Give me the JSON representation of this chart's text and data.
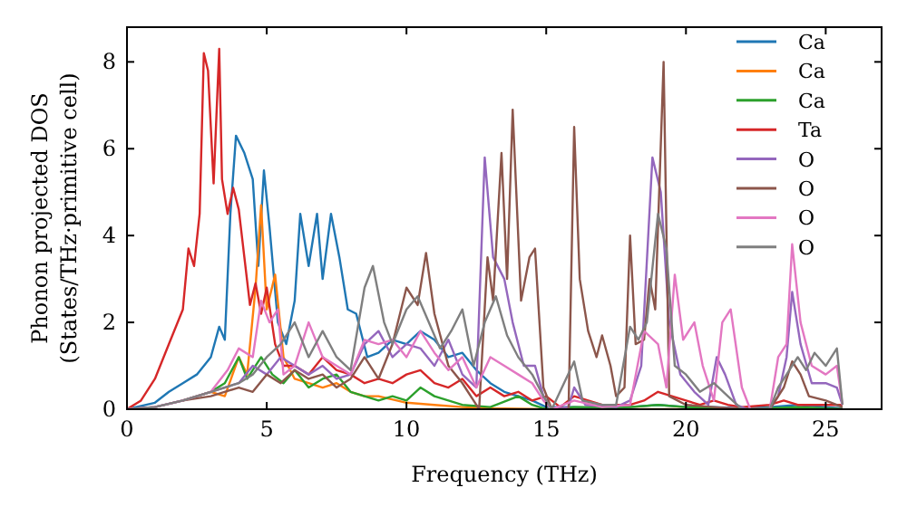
{
  "chart_data": {
    "type": "line",
    "xlabel": "Frequency (THz)",
    "ylabel": "Phonon projected DOS\n(States/THz·primitive cell)",
    "xlim": [
      0,
      27
    ],
    "ylim": [
      0,
      8.8
    ],
    "xticks": [
      0,
      5,
      10,
      15,
      20,
      25
    ],
    "yticks": [
      0,
      2,
      4,
      6,
      8
    ],
    "grid": false,
    "legend": "top right",
    "marker": "none",
    "line_style": "solid",
    "series": [
      {
        "name": "Ca",
        "color": "#1f77b4",
        "x": [
          0,
          1,
          1.5,
          2,
          2.5,
          3,
          3.3,
          3.5,
          3.7,
          3.9,
          4.2,
          4.5,
          4.7,
          4.9,
          5.1,
          5.4,
          5.7,
          6.0,
          6.2,
          6.5,
          6.8,
          7.0,
          7.3,
          7.6,
          7.9,
          8.2,
          8.6,
          9,
          9.5,
          10,
          10.5,
          11,
          11.5,
          12,
          12.5,
          13,
          13.5,
          14,
          14.5,
          15,
          16,
          17,
          18,
          19,
          20,
          21,
          22,
          23,
          24,
          25,
          25.6
        ],
        "values": [
          0,
          0.15,
          0.4,
          0.6,
          0.8,
          1.2,
          1.9,
          1.6,
          4.5,
          6.3,
          5.9,
          5.3,
          3.3,
          5.5,
          4.2,
          2.0,
          1.5,
          2.5,
          4.5,
          3.3,
          4.5,
          3.0,
          4.5,
          3.5,
          2.3,
          2.2,
          1.2,
          1.3,
          1.6,
          1.5,
          1.8,
          1.6,
          1.2,
          1.3,
          0.9,
          0.6,
          0.4,
          0.3,
          0.2,
          0.05,
          0.05,
          0.02,
          0.05,
          0.1,
          0.05,
          0.05,
          0.02,
          0.05,
          0.1,
          0.05,
          0.02
        ]
      },
      {
        "name": "Ca",
        "color": "#ff7f0e",
        "x": [
          2,
          3,
          3.5,
          4,
          4.3,
          4.6,
          4.8,
          5.0,
          5.3,
          5.6,
          6,
          6.5,
          7,
          7.5,
          8,
          8.5,
          9,
          10,
          11,
          12,
          13,
          15,
          20,
          25.6
        ],
        "values": [
          0.2,
          0.4,
          0.3,
          1.2,
          0.8,
          2.8,
          4.7,
          2.3,
          3.1,
          1.2,
          0.7,
          0.6,
          0.5,
          0.6,
          0.4,
          0.3,
          0.3,
          0.15,
          0.1,
          0.05,
          0.02,
          0,
          0,
          0
        ]
      },
      {
        "name": "Ca",
        "color": "#2ca02c",
        "x": [
          2,
          3,
          3.5,
          4,
          4.3,
          4.8,
          5.2,
          5.6,
          6,
          6.5,
          7,
          7.5,
          8,
          8.5,
          9,
          9.5,
          10,
          10.5,
          11,
          11.5,
          12,
          13,
          14,
          14.5,
          15,
          16,
          18,
          19,
          20,
          22,
          24,
          25.6
        ],
        "values": [
          0.2,
          0.4,
          0.6,
          1.2,
          0.7,
          1.2,
          0.8,
          0.6,
          0.9,
          0.5,
          0.7,
          0.8,
          0.4,
          0.3,
          0.2,
          0.3,
          0.2,
          0.5,
          0.3,
          0.2,
          0.1,
          0.05,
          0.3,
          0.1,
          0,
          0.05,
          0.05,
          0.1,
          0.05,
          0,
          0.05,
          0
        ]
      },
      {
        "name": "Ta",
        "color": "#d62728",
        "x": [
          0,
          0.5,
          1,
          1.5,
          2,
          2.2,
          2.4,
          2.6,
          2.75,
          2.9,
          3.1,
          3.3,
          3.4,
          3.6,
          3.8,
          4.0,
          4.2,
          4.4,
          4.6,
          4.8,
          5.0,
          5.3,
          5.6,
          6,
          6.5,
          7,
          7.5,
          8,
          8.5,
          9,
          9.5,
          10,
          10.5,
          11,
          11.5,
          12,
          12.5,
          13,
          13.5,
          14,
          14.5,
          15,
          15.5,
          16,
          17,
          18,
          18.5,
          19,
          19.5,
          20,
          20.5,
          21,
          21.5,
          22,
          23,
          23.5,
          24,
          25,
          25.6
        ],
        "values": [
          0,
          0.2,
          0.7,
          1.5,
          2.3,
          3.7,
          3.3,
          4.5,
          8.2,
          7.8,
          5.2,
          8.3,
          5.3,
          4.5,
          5.1,
          4.6,
          3.5,
          2.4,
          2.9,
          2.2,
          2.8,
          1.5,
          1.0,
          1.0,
          0.8,
          1.2,
          0.9,
          0.8,
          0.6,
          0.7,
          0.6,
          0.8,
          0.9,
          0.6,
          0.5,
          0.7,
          0.3,
          0.5,
          0.3,
          0.4,
          0.2,
          0.3,
          0.05,
          0.3,
          0.1,
          0.1,
          0.2,
          0.4,
          0.3,
          0.2,
          0.1,
          0.2,
          0.1,
          0.05,
          0.1,
          0.2,
          0.1,
          0.1,
          0.1
        ]
      },
      {
        "name": "O",
        "color": "#9467bd",
        "x": [
          0,
          1,
          2,
          3,
          4,
          4.5,
          5,
          5.5,
          6,
          6.5,
          7,
          7.5,
          8,
          8.5,
          9,
          9.5,
          10,
          10.5,
          11,
          11.5,
          12,
          12.5,
          12.8,
          13.1,
          13.5,
          13.8,
          14.2,
          14.6,
          14.9,
          15.2,
          15.8,
          16,
          16.4,
          17.5,
          18,
          18.4,
          18.8,
          19.1,
          19.4,
          19.8,
          20.3,
          20.8,
          21.1,
          21.4,
          21.8,
          22.2,
          23.0,
          23.3,
          23.6,
          23.8,
          24.1,
          24.5,
          25,
          25.4,
          25.6
        ],
        "values": [
          0,
          0.05,
          0.2,
          0.4,
          0.6,
          1.0,
          0.8,
          1.2,
          1.0,
          0.8,
          1.0,
          0.7,
          0.8,
          1.5,
          1.8,
          1.2,
          1.5,
          1.4,
          1.0,
          1.6,
          0.8,
          0.5,
          5.8,
          3.5,
          3.0,
          2.0,
          1.0,
          1.0,
          0.3,
          0,
          0.05,
          0.5,
          0.1,
          0.05,
          0.2,
          1.0,
          5.8,
          5.0,
          2.0,
          0.8,
          0.4,
          0.1,
          1.2,
          0.8,
          0.1,
          0,
          0,
          0.3,
          1.2,
          2.7,
          1.5,
          0.6,
          0.6,
          0.5,
          0.1
        ]
      },
      {
        "name": "O",
        "color": "#8c564b",
        "x": [
          0,
          1,
          2,
          3,
          4,
          4.5,
          5,
          5.5,
          6,
          6.5,
          7,
          7.5,
          8,
          8.5,
          9,
          9.5,
          10,
          10.4,
          10.7,
          11,
          11.5,
          12,
          12.4,
          12.6,
          12.9,
          13.1,
          13.4,
          13.6,
          13.8,
          14.1,
          14.4,
          14.6,
          14.9,
          15.2,
          15.8,
          16.0,
          16.2,
          16.5,
          16.8,
          17.0,
          17.3,
          17.5,
          17.8,
          18.0,
          18.2,
          18.5,
          18.7,
          18.9,
          19.2,
          19.4,
          20,
          21,
          22,
          23,
          23.5,
          23.8,
          24.1,
          24.4,
          25,
          25.6
        ],
        "values": [
          0,
          0.05,
          0.2,
          0.3,
          0.5,
          0.4,
          0.8,
          0.6,
          0.9,
          0.7,
          0.8,
          0.5,
          0.7,
          1.2,
          0.7,
          1.5,
          2.8,
          2.4,
          3.6,
          2.2,
          1.0,
          0.6,
          0.2,
          0,
          3.5,
          2.5,
          5.9,
          3.0,
          6.9,
          2.5,
          3.5,
          3.7,
          0.5,
          0,
          0,
          6.5,
          3.0,
          1.8,
          1.2,
          1.7,
          1.0,
          0.3,
          0.5,
          4.0,
          1.5,
          1.6,
          3.0,
          2.3,
          8.0,
          0.3,
          0.1,
          0.05,
          0,
          0,
          0.5,
          1.1,
          0.8,
          0.3,
          0.2,
          0.05
        ]
      },
      {
        "name": "O",
        "color": "#e377c2",
        "x": [
          0,
          1,
          2,
          3,
          3.6,
          4.0,
          4.5,
          4.8,
          5.1,
          5.4,
          5.6,
          6,
          6.5,
          7,
          7.5,
          8,
          8.5,
          9,
          9.5,
          10,
          10.5,
          11,
          11.5,
          12,
          12.5,
          13,
          13.5,
          14,
          14.5,
          14.9,
          15.2,
          16,
          17,
          18,
          18.5,
          19,
          19.3,
          19.6,
          19.9,
          20.3,
          20.6,
          21.0,
          21.3,
          21.6,
          22.0,
          22.3,
          23.0,
          23.3,
          23.6,
          23.8,
          24.1,
          24.5,
          25,
          25.4,
          25.6
        ],
        "values": [
          0,
          0.05,
          0.2,
          0.4,
          0.9,
          1.4,
          1.2,
          2.5,
          2.0,
          2.3,
          0.8,
          1.0,
          2.0,
          1.2,
          1.0,
          0.8,
          1.6,
          1.5,
          1.6,
          1.2,
          1.8,
          1.3,
          0.9,
          1.2,
          0.5,
          1.2,
          1.0,
          0.8,
          0.6,
          0.2,
          0,
          0.2,
          0.05,
          0.1,
          1.8,
          1.5,
          0.5,
          3.1,
          1.6,
          2.0,
          1.0,
          0.2,
          2.0,
          2.3,
          0.5,
          0,
          0,
          1.2,
          1.5,
          3.8,
          2.0,
          1.0,
          0.8,
          1.0,
          0.1
        ]
      },
      {
        "name": "O",
        "color": "#7f7f7f",
        "x": [
          0,
          1,
          2,
          3,
          4,
          4.5,
          5,
          5.5,
          6,
          6.5,
          7,
          7.5,
          8,
          8.5,
          8.8,
          9.2,
          9.5,
          10,
          10.4,
          10.8,
          11.2,
          11.6,
          12,
          12.4,
          12.8,
          13.2,
          13.6,
          14,
          14.5,
          14.9,
          15.2,
          16,
          16.3,
          17,
          17.5,
          18,
          18.3,
          18.6,
          19.0,
          19.3,
          19.6,
          20,
          20.5,
          21,
          21.5,
          22,
          23,
          23.3,
          23.6,
          24,
          24.3,
          24.6,
          25,
          25.4,
          25.6
        ],
        "values": [
          0,
          0.05,
          0.2,
          0.4,
          0.6,
          0.8,
          1.2,
          1.5,
          2.0,
          1.2,
          1.8,
          1.2,
          0.9,
          2.8,
          3.3,
          2.0,
          1.5,
          2.3,
          2.6,
          2.0,
          1.4,
          1.8,
          2.3,
          1.0,
          2.0,
          2.6,
          1.7,
          1.2,
          0.8,
          0.3,
          0,
          1.1,
          0.2,
          0.1,
          0.1,
          1.9,
          1.6,
          2.0,
          4.5,
          3.7,
          1.0,
          0.8,
          0.4,
          0.6,
          0.3,
          0,
          0,
          0.5,
          0.8,
          1.2,
          0.9,
          1.3,
          1.0,
          1.4,
          0.1
        ]
      }
    ]
  }
}
